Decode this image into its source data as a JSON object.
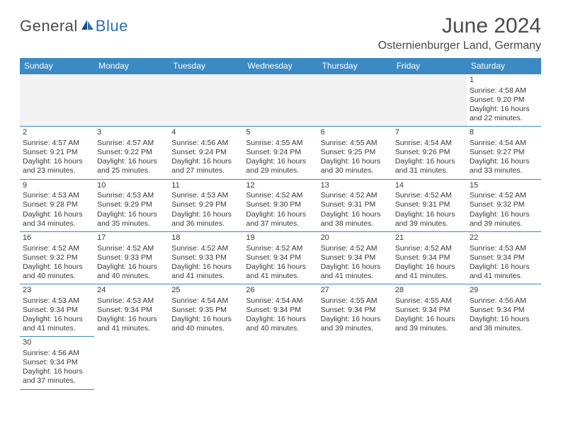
{
  "logo": {
    "text1": "General",
    "text2": "Blue"
  },
  "title": "June 2024",
  "location": "Osternienburger Land, Germany",
  "header_bg": "#3b8ac4",
  "header_fg": "#ffffff",
  "border_color": "#3b8ac4",
  "blank_bg": "#f3f3f3",
  "text_color": "#3a3a3a",
  "day_names": [
    "Sunday",
    "Monday",
    "Tuesday",
    "Wednesday",
    "Thursday",
    "Friday",
    "Saturday"
  ],
  "weeks": [
    [
      null,
      null,
      null,
      null,
      null,
      null,
      {
        "n": "1",
        "sr": "4:58 AM",
        "ss": "9:20 PM",
        "dl": "16 hours and 22 minutes."
      }
    ],
    [
      {
        "n": "2",
        "sr": "4:57 AM",
        "ss": "9:21 PM",
        "dl": "16 hours and 23 minutes."
      },
      {
        "n": "3",
        "sr": "4:57 AM",
        "ss": "9:22 PM",
        "dl": "16 hours and 25 minutes."
      },
      {
        "n": "4",
        "sr": "4:56 AM",
        "ss": "9:24 PM",
        "dl": "16 hours and 27 minutes."
      },
      {
        "n": "5",
        "sr": "4:55 AM",
        "ss": "9:24 PM",
        "dl": "16 hours and 29 minutes."
      },
      {
        "n": "6",
        "sr": "4:55 AM",
        "ss": "9:25 PM",
        "dl": "16 hours and 30 minutes."
      },
      {
        "n": "7",
        "sr": "4:54 AM",
        "ss": "9:26 PM",
        "dl": "16 hours and 31 minutes."
      },
      {
        "n": "8",
        "sr": "4:54 AM",
        "ss": "9:27 PM",
        "dl": "16 hours and 33 minutes."
      }
    ],
    [
      {
        "n": "9",
        "sr": "4:53 AM",
        "ss": "9:28 PM",
        "dl": "16 hours and 34 minutes."
      },
      {
        "n": "10",
        "sr": "4:53 AM",
        "ss": "9:29 PM",
        "dl": "16 hours and 35 minutes."
      },
      {
        "n": "11",
        "sr": "4:53 AM",
        "ss": "9:29 PM",
        "dl": "16 hours and 36 minutes."
      },
      {
        "n": "12",
        "sr": "4:52 AM",
        "ss": "9:30 PM",
        "dl": "16 hours and 37 minutes."
      },
      {
        "n": "13",
        "sr": "4:52 AM",
        "ss": "9:31 PM",
        "dl": "16 hours and 38 minutes."
      },
      {
        "n": "14",
        "sr": "4:52 AM",
        "ss": "9:31 PM",
        "dl": "16 hours and 39 minutes."
      },
      {
        "n": "15",
        "sr": "4:52 AM",
        "ss": "9:32 PM",
        "dl": "16 hours and 39 minutes."
      }
    ],
    [
      {
        "n": "16",
        "sr": "4:52 AM",
        "ss": "9:32 PM",
        "dl": "16 hours and 40 minutes."
      },
      {
        "n": "17",
        "sr": "4:52 AM",
        "ss": "9:33 PM",
        "dl": "16 hours and 40 minutes."
      },
      {
        "n": "18",
        "sr": "4:52 AM",
        "ss": "9:33 PM",
        "dl": "16 hours and 41 minutes."
      },
      {
        "n": "19",
        "sr": "4:52 AM",
        "ss": "9:34 PM",
        "dl": "16 hours and 41 minutes."
      },
      {
        "n": "20",
        "sr": "4:52 AM",
        "ss": "9:34 PM",
        "dl": "16 hours and 41 minutes."
      },
      {
        "n": "21",
        "sr": "4:52 AM",
        "ss": "9:34 PM",
        "dl": "16 hours and 41 minutes."
      },
      {
        "n": "22",
        "sr": "4:53 AM",
        "ss": "9:34 PM",
        "dl": "16 hours and 41 minutes."
      }
    ],
    [
      {
        "n": "23",
        "sr": "4:53 AM",
        "ss": "9:34 PM",
        "dl": "16 hours and 41 minutes."
      },
      {
        "n": "24",
        "sr": "4:53 AM",
        "ss": "9:34 PM",
        "dl": "16 hours and 41 minutes."
      },
      {
        "n": "25",
        "sr": "4:54 AM",
        "ss": "9:35 PM",
        "dl": "16 hours and 40 minutes."
      },
      {
        "n": "26",
        "sr": "4:54 AM",
        "ss": "9:34 PM",
        "dl": "16 hours and 40 minutes."
      },
      {
        "n": "27",
        "sr": "4:55 AM",
        "ss": "9:34 PM",
        "dl": "16 hours and 39 minutes."
      },
      {
        "n": "28",
        "sr": "4:55 AM",
        "ss": "9:34 PM",
        "dl": "16 hours and 39 minutes."
      },
      {
        "n": "29",
        "sr": "4:56 AM",
        "ss": "9:34 PM",
        "dl": "16 hours and 38 minutes."
      }
    ],
    [
      {
        "n": "30",
        "sr": "4:56 AM",
        "ss": "9:34 PM",
        "dl": "16 hours and 37 minutes."
      },
      null,
      null,
      null,
      null,
      null,
      null
    ]
  ],
  "labels": {
    "sunrise": "Sunrise:",
    "sunset": "Sunset:",
    "daylight": "Daylight:"
  }
}
